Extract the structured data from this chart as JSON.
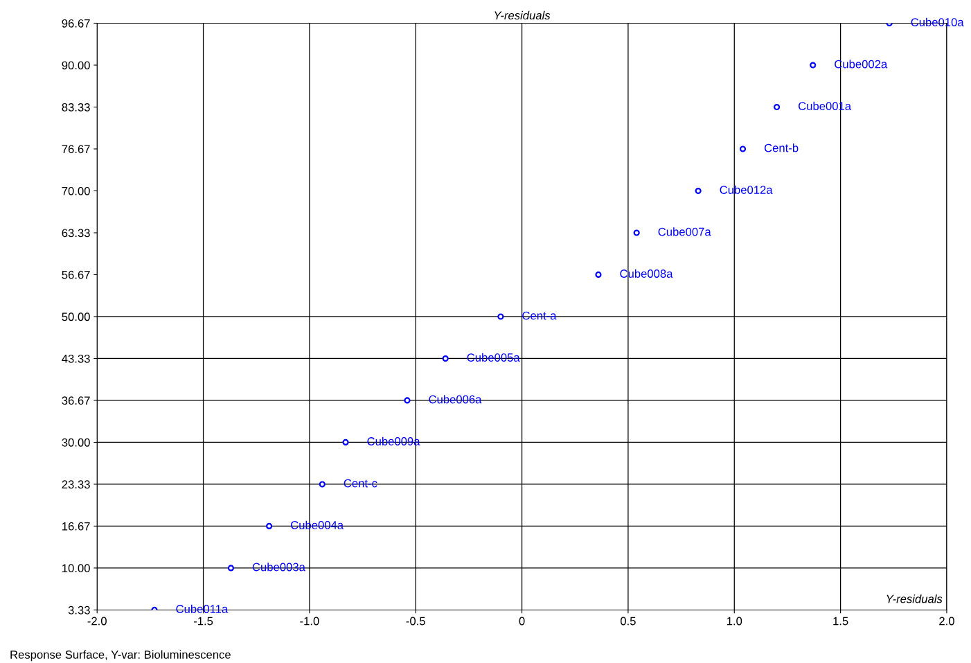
{
  "chart_data": {
    "type": "scatter",
    "title": "Y-residuals",
    "xlabel": "Y-residuals",
    "x": [
      -1.73,
      -1.37,
      -1.19,
      -0.94,
      -0.83,
      -0.54,
      -0.36,
      -0.1,
      0.36,
      0.54,
      0.83,
      1.04,
      1.2,
      1.37,
      1.73
    ],
    "values": [
      3.33,
      10.0,
      16.67,
      23.33,
      30.0,
      36.67,
      43.33,
      50.0,
      56.67,
      63.33,
      70.0,
      76.67,
      83.33,
      90.0,
      96.67
    ],
    "color": "#0000ff",
    "marker": "circle",
    "xlim": [
      -2.0,
      2.0
    ],
    "xticks": [
      {
        "value": -2.0,
        "label": "-2.0"
      },
      {
        "value": -1.5,
        "label": "-1.5"
      },
      {
        "value": -1.0,
        "label": "-1.0"
      },
      {
        "value": -0.5,
        "label": "-0.5"
      },
      0,
      0.5,
      {
        "value": 1.0,
        "label": "1.0"
      },
      1.5,
      {
        "value": 2.0,
        "label": "2.0"
      }
    ],
    "ylim": [
      3.33,
      96.67
    ],
    "yticks": [
      3.33,
      {
        "value": 10.0,
        "label": "10.00"
      },
      16.67,
      23.33,
      {
        "value": 30.0,
        "label": "30.00"
      },
      36.67,
      43.33,
      {
        "value": 50.0,
        "label": "50.00"
      },
      56.67,
      63.33,
      {
        "value": 70.0,
        "label": "70.00"
      },
      76.67,
      83.33,
      {
        "value": 90.0,
        "label": "90.00"
      },
      96.67
    ],
    "grid": "x",
    "ref_lines": [
      {
        "axis": "y",
        "value": 10.0,
        "color": "#000000"
      },
      {
        "axis": "y",
        "value": 16.67,
        "color": "#000000"
      },
      {
        "axis": "y",
        "value": 23.33,
        "color": "#000000"
      },
      {
        "axis": "y",
        "value": 30.0,
        "color": "#000000"
      },
      {
        "axis": "y",
        "value": 36.67,
        "color": "#000000"
      },
      {
        "axis": "y",
        "value": 43.33,
        "color": "#000000"
      },
      {
        "axis": "y",
        "value": 50.0,
        "color": "#000000"
      }
    ],
    "annotations": [
      {
        "text": "Cube011a",
        "x": -1.73,
        "y": 3.33
      },
      {
        "text": "Cube003a",
        "x": -1.37,
        "y": 10.0
      },
      {
        "text": "Cube004a",
        "x": -1.19,
        "y": 16.67
      },
      {
        "text": "Cent-c",
        "x": -0.94,
        "y": 23.33
      },
      {
        "text": "Cube009a",
        "x": -0.83,
        "y": 30.0
      },
      {
        "text": "Cube006a",
        "x": -0.54,
        "y": 36.67
      },
      {
        "text": "Cube005a",
        "x": -0.36,
        "y": 43.33
      },
      {
        "text": "Cent-a",
        "x": -0.1,
        "y": 50.0
      },
      {
        "text": "Cube008a",
        "x": 0.36,
        "y": 56.67
      },
      {
        "text": "Cube007a",
        "x": 0.54,
        "y": 63.33
      },
      {
        "text": "Cube012a",
        "x": 0.83,
        "y": 70.0
      },
      {
        "text": "Cent-b",
        "x": 1.04,
        "y": 76.67
      },
      {
        "text": "Cube001a",
        "x": 1.2,
        "y": 83.33
      },
      {
        "text": "Cube002a",
        "x": 1.37,
        "y": 90.0
      },
      {
        "text": "Cube010a",
        "x": 1.73,
        "y": 96.67
      },
      "Response Surface, Y-var: Bioluminescence"
    ]
  }
}
